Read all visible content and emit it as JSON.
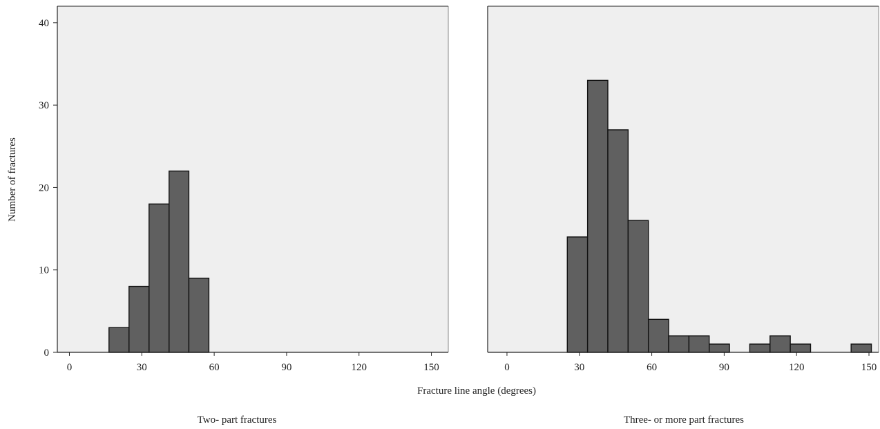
{
  "chart_data": {
    "type": "bar",
    "subtype": "histogram",
    "title": "",
    "xlabel": "Fracture line angle (degrees)",
    "ylabel": "Number of fractures",
    "ylim": [
      0,
      42
    ],
    "yticks": [
      0,
      10,
      20,
      30,
      40
    ],
    "grid": false,
    "plot_background": "#efefef",
    "bar_color": "#606060",
    "bar_edge_color": "#111111",
    "panels": [
      {
        "name": "Two- part fractures",
        "xlim": [
          -5,
          157
        ],
        "xticks": [
          0,
          30,
          60,
          90,
          120,
          150
        ],
        "bins": [
          {
            "x0": 16.4,
            "x1": 24.7,
            "value": 3
          },
          {
            "x0": 24.7,
            "x1": 33.0,
            "value": 8
          },
          {
            "x0": 33.0,
            "x1": 41.3,
            "value": 18
          },
          {
            "x0": 41.3,
            "x1": 49.5,
            "value": 22
          },
          {
            "x0": 49.5,
            "x1": 57.8,
            "value": 9
          }
        ]
      },
      {
        "name": "Three- or more part fractures",
        "xlim": [
          -8,
          154
        ],
        "xticks": [
          0,
          30,
          60,
          90,
          120,
          150
        ],
        "bins": [
          {
            "x0": 25.0,
            "x1": 33.4,
            "value": 14
          },
          {
            "x0": 33.4,
            "x1": 41.8,
            "value": 33
          },
          {
            "x0": 41.8,
            "x1": 50.2,
            "value": 27
          },
          {
            "x0": 50.2,
            "x1": 58.6,
            "value": 16
          },
          {
            "x0": 58.6,
            "x1": 67.0,
            "value": 4
          },
          {
            "x0": 67.0,
            "x1": 75.4,
            "value": 2
          },
          {
            "x0": 75.4,
            "x1": 83.8,
            "value": 2
          },
          {
            "x0": 83.8,
            "x1": 92.2,
            "value": 1
          },
          {
            "x0": 100.6,
            "x1": 109.0,
            "value": 1
          },
          {
            "x0": 109.0,
            "x1": 117.4,
            "value": 2
          },
          {
            "x0": 117.4,
            "x1": 125.8,
            "value": 1
          },
          {
            "x0": 142.6,
            "x1": 151.0,
            "value": 1
          }
        ]
      }
    ]
  }
}
